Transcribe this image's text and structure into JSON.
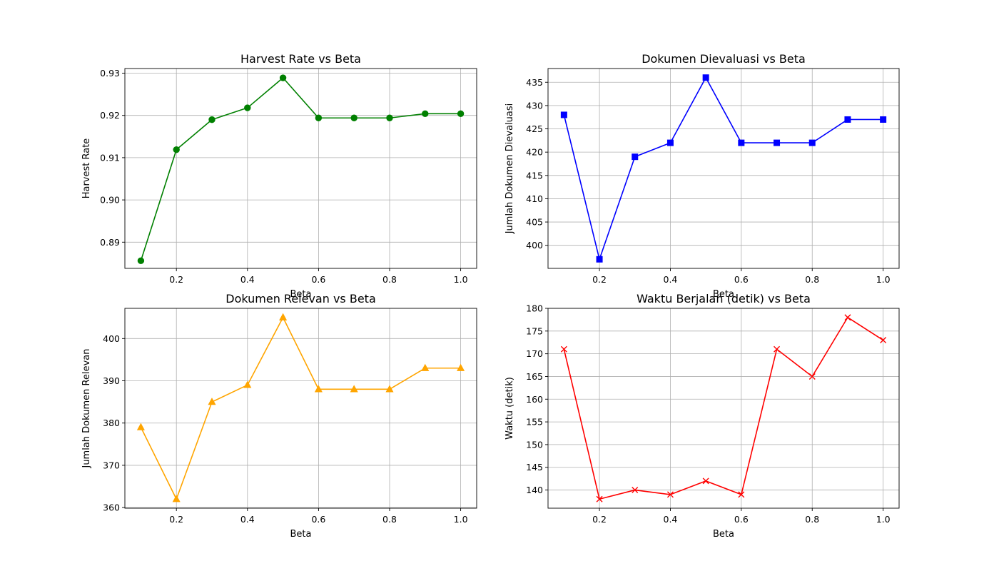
{
  "chart_data": [
    {
      "id": "harvest",
      "type": "line",
      "title": "Harvest Rate vs Beta",
      "xlabel": "Beta",
      "ylabel": "Harvest Rate",
      "x": [
        0.1,
        0.2,
        0.3,
        0.4,
        0.5,
        0.6,
        0.7,
        0.8,
        0.9,
        1.0
      ],
      "series": [
        {
          "values": [
            0.8856,
            0.9119,
            0.919,
            0.9218,
            0.9289,
            0.9194,
            0.9194,
            0.9194,
            0.9204,
            0.9204
          ],
          "color": "#008000",
          "marker": "circle"
        }
      ],
      "xlim": [
        0.055,
        1.045
      ],
      "ylim": [
        0.8838,
        0.9311
      ],
      "xticks": [
        0.2,
        0.4,
        0.6,
        0.8,
        1.0
      ],
      "xtick_labels": [
        "0.2",
        "0.4",
        "0.6",
        "0.8",
        "1.0"
      ],
      "yticks": [
        0.89,
        0.9,
        0.91,
        0.92,
        0.93
      ],
      "ytick_labels": [
        "0.89",
        "0.90",
        "0.91",
        "0.92",
        "0.93"
      ],
      "grid": true
    },
    {
      "id": "evaluated",
      "type": "line",
      "title": "Dokumen Dievaluasi vs Beta",
      "xlabel": "Beta",
      "ylabel": "Jumlah Dokumen Dievaluasi",
      "x": [
        0.1,
        0.2,
        0.3,
        0.4,
        0.5,
        0.6,
        0.7,
        0.8,
        0.9,
        1.0
      ],
      "series": [
        {
          "values": [
            428,
            397,
            419,
            422,
            436,
            422,
            422,
            422,
            427,
            427
          ],
          "color": "#0000ff",
          "marker": "square"
        }
      ],
      "xlim": [
        0.055,
        1.045
      ],
      "ylim": [
        395.05,
        437.95
      ],
      "xticks": [
        0.2,
        0.4,
        0.6,
        0.8,
        1.0
      ],
      "xtick_labels": [
        "0.2",
        "0.4",
        "0.6",
        "0.8",
        "1.0"
      ],
      "yticks": [
        400,
        405,
        410,
        415,
        420,
        425,
        430,
        435
      ],
      "ytick_labels": [
        "400",
        "405",
        "410",
        "415",
        "420",
        "425",
        "430",
        "435"
      ],
      "grid": true
    },
    {
      "id": "relevant",
      "type": "line",
      "title": "Dokumen Relevan vs Beta",
      "xlabel": "Beta",
      "ylabel": "Jumlah Dokumen Relevan",
      "x": [
        0.1,
        0.2,
        0.3,
        0.4,
        0.5,
        0.6,
        0.7,
        0.8,
        0.9,
        1.0
      ],
      "series": [
        {
          "values": [
            379,
            362,
            385,
            389,
            405,
            388,
            388,
            388,
            393,
            393
          ],
          "color": "#ffa500",
          "marker": "triangle"
        }
      ],
      "xlim": [
        0.055,
        1.045
      ],
      "ylim": [
        359.85,
        407.15
      ],
      "xticks": [
        0.2,
        0.4,
        0.6,
        0.8,
        1.0
      ],
      "xtick_labels": [
        "0.2",
        "0.4",
        "0.6",
        "0.8",
        "1.0"
      ],
      "yticks": [
        360,
        370,
        380,
        390,
        400
      ],
      "ytick_labels": [
        "360",
        "370",
        "380",
        "390",
        "400"
      ],
      "grid": true
    },
    {
      "id": "runtime",
      "type": "line",
      "title": "Waktu Berjalan (detik) vs Beta",
      "xlabel": "Beta",
      "ylabel": "Waktu (detik)",
      "x": [
        0.1,
        0.2,
        0.3,
        0.4,
        0.5,
        0.6,
        0.7,
        0.8,
        0.9,
        1.0
      ],
      "series": [
        {
          "values": [
            171,
            138,
            140,
            139,
            142,
            139,
            171,
            165,
            178,
            173
          ],
          "color": "#ff0000",
          "marker": "x"
        }
      ],
      "xlim": [
        0.055,
        1.045
      ],
      "ylim": [
        136.0,
        180.0
      ],
      "xticks": [
        0.2,
        0.4,
        0.6,
        0.8,
        1.0
      ],
      "xtick_labels": [
        "0.2",
        "0.4",
        "0.6",
        "0.8",
        "1.0"
      ],
      "yticks": [
        140,
        145,
        150,
        155,
        160,
        165,
        170,
        175,
        180
      ],
      "ytick_labels": [
        "140",
        "145",
        "150",
        "155",
        "160",
        "165",
        "170",
        "175",
        "180"
      ],
      "grid": true
    }
  ]
}
